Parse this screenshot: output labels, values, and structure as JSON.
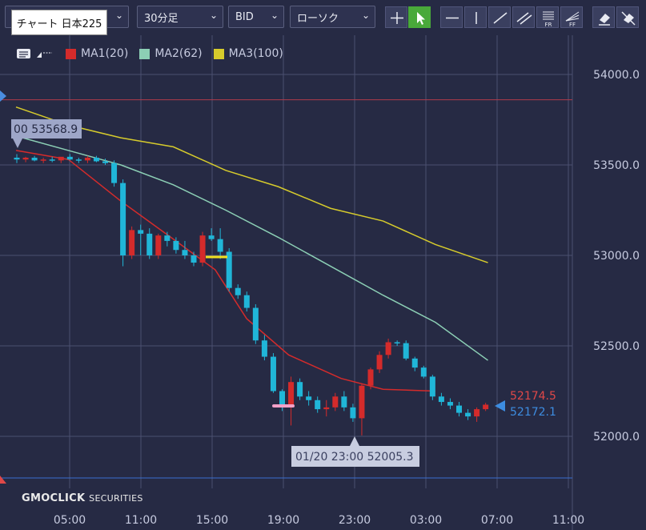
{
  "toolbar": {
    "symbol_select": "チャート 日本225",
    "period_select": "30分足",
    "price_select": "BID",
    "chart_type_select": "ローソク",
    "tools": [
      "crosshair-icon",
      "pointer-icon",
      "horizontal-line-icon",
      "vertical-line-icon",
      "trend-line-icon",
      "channel-icon",
      "fibonacci-retracement-icon",
      "fibonacci-fan-icon",
      "eraser-icon",
      "delete-all-icon"
    ]
  },
  "legend": {
    "ma1_label": "MA1(20)",
    "ma1_color": "#d42b2b",
    "ma2_label": "MA2(62)",
    "ma2_color": "#8ccfb5",
    "ma3_label": "MA3(100)",
    "ma3_color": "#d6cb2c"
  },
  "labels": {
    "high_marker": "00 53568.9",
    "low_marker": "01/20 23:00 52005.3",
    "ask_price": "52174.5",
    "bid_price": "52172.1"
  },
  "colors": {
    "up": "#d42b2b",
    "down": "#20b6d8",
    "ask": "#e04848",
    "bid": "#3d8ce0",
    "grid": "#4b5070",
    "background": "#262a44"
  },
  "watermark": {
    "brand": "GMOCLICK",
    "suffix": "SECURITIES"
  },
  "chart_data": {
    "type": "candlestick",
    "y_ticks": [
      "54000.0",
      "53500.0",
      "53000.0",
      "52500.0",
      "52000.0"
    ],
    "x_ticks": [
      "05:00",
      "11:00",
      "15:00",
      "19:00",
      "23:00",
      "03:00",
      "07:00",
      "11:00"
    ],
    "ylim": [
      51790,
      54160
    ],
    "horizontal_lines": {
      "upper_alert": 53860,
      "lower_alert": 51770
    },
    "candles": [
      [
        53540,
        53560,
        53510,
        53530
      ],
      [
        53530,
        53545,
        53515,
        53540
      ],
      [
        53540,
        53550,
        53520,
        53525
      ],
      [
        53525,
        53540,
        53510,
        53530
      ],
      [
        53530,
        53545,
        53515,
        53525
      ],
      [
        53525,
        53540,
        53510,
        53545
      ],
      [
        53545,
        53560,
        53525,
        53530
      ],
      [
        53530,
        53540,
        53510,
        53525
      ],
      [
        53525,
        53550,
        53510,
        53540
      ],
      [
        53540,
        53550,
        53515,
        53520
      ],
      [
        53520,
        53535,
        53500,
        53510
      ],
      [
        53510,
        53525,
        53380,
        53400
      ],
      [
        53400,
        53420,
        52940,
        53000
      ],
      [
        53000,
        53160,
        52980,
        53140
      ],
      [
        53140,
        53170,
        53000,
        53120
      ],
      [
        53120,
        53150,
        52980,
        53000
      ],
      [
        53000,
        53120,
        52980,
        53110
      ],
      [
        53110,
        53130,
        53050,
        53080
      ],
      [
        53080,
        53100,
        53010,
        53030
      ],
      [
        53030,
        53080,
        52980,
        53000
      ],
      [
        53000,
        53020,
        52940,
        52960
      ],
      [
        52960,
        53130,
        52940,
        53110
      ],
      [
        53110,
        53150,
        53080,
        53090
      ],
      [
        53090,
        53150,
        52980,
        53020
      ],
      [
        53020,
        53040,
        52800,
        52820
      ],
      [
        52820,
        52840,
        52760,
        52780
      ],
      [
        52780,
        52800,
        52690,
        52710
      ],
      [
        52710,
        52730,
        52510,
        52530
      ],
      [
        52530,
        52560,
        52420,
        52440
      ],
      [
        52440,
        52460,
        52240,
        52250
      ],
      [
        52250,
        52260,
        52140,
        52160
      ],
      [
        52160,
        52330,
        52060,
        52300
      ],
      [
        52300,
        52320,
        52200,
        52220
      ],
      [
        52220,
        52250,
        52170,
        52200
      ],
      [
        52200,
        52220,
        52130,
        52150
      ],
      [
        52150,
        52200,
        52110,
        52160
      ],
      [
        52160,
        52240,
        52140,
        52220
      ],
      [
        52220,
        52250,
        52140,
        52160
      ],
      [
        52160,
        52180,
        52080,
        52100
      ],
      [
        52100,
        52290,
        52005,
        52280
      ],
      [
        52280,
        52380,
        52260,
        52370
      ],
      [
        52370,
        52470,
        52350,
        52450
      ],
      [
        52450,
        52540,
        52430,
        52520
      ],
      [
        52520,
        52530,
        52500,
        52515
      ],
      [
        52515,
        52530,
        52420,
        52430
      ],
      [
        52430,
        52440,
        52360,
        52380
      ],
      [
        52380,
        52390,
        52320,
        52330
      ],
      [
        52330,
        52340,
        52200,
        52220
      ],
      [
        52220,
        52240,
        52170,
        52190
      ],
      [
        52190,
        52210,
        52150,
        52170
      ],
      [
        52170,
        52190,
        52110,
        52130
      ],
      [
        52130,
        52150,
        52090,
        52110
      ],
      [
        52110,
        52160,
        52080,
        52150
      ],
      [
        52150,
        52185,
        52140,
        52175
      ]
    ],
    "ma1": [
      [
        0,
        53580
      ],
      [
        10,
        53530
      ],
      [
        20,
        53300
      ],
      [
        30,
        53090
      ],
      [
        38,
        52920
      ],
      [
        44,
        52650
      ],
      [
        52,
        52450
      ],
      [
        62,
        52320
      ],
      [
        70,
        52260
      ],
      [
        80,
        52250
      ]
    ],
    "ma2": [
      [
        0,
        53660
      ],
      [
        10,
        53580
      ],
      [
        20,
        53500
      ],
      [
        30,
        53390
      ],
      [
        40,
        53250
      ],
      [
        50,
        53100
      ],
      [
        60,
        52940
      ],
      [
        70,
        52780
      ],
      [
        80,
        52630
      ],
      [
        90,
        52420
      ]
    ],
    "ma3": [
      [
        0,
        53820
      ],
      [
        10,
        53720
      ],
      [
        20,
        53650
      ],
      [
        30,
        53600
      ],
      [
        40,
        53470
      ],
      [
        50,
        53380
      ],
      [
        60,
        53260
      ],
      [
        70,
        53190
      ],
      [
        80,
        53060
      ],
      [
        90,
        52960
      ]
    ]
  }
}
